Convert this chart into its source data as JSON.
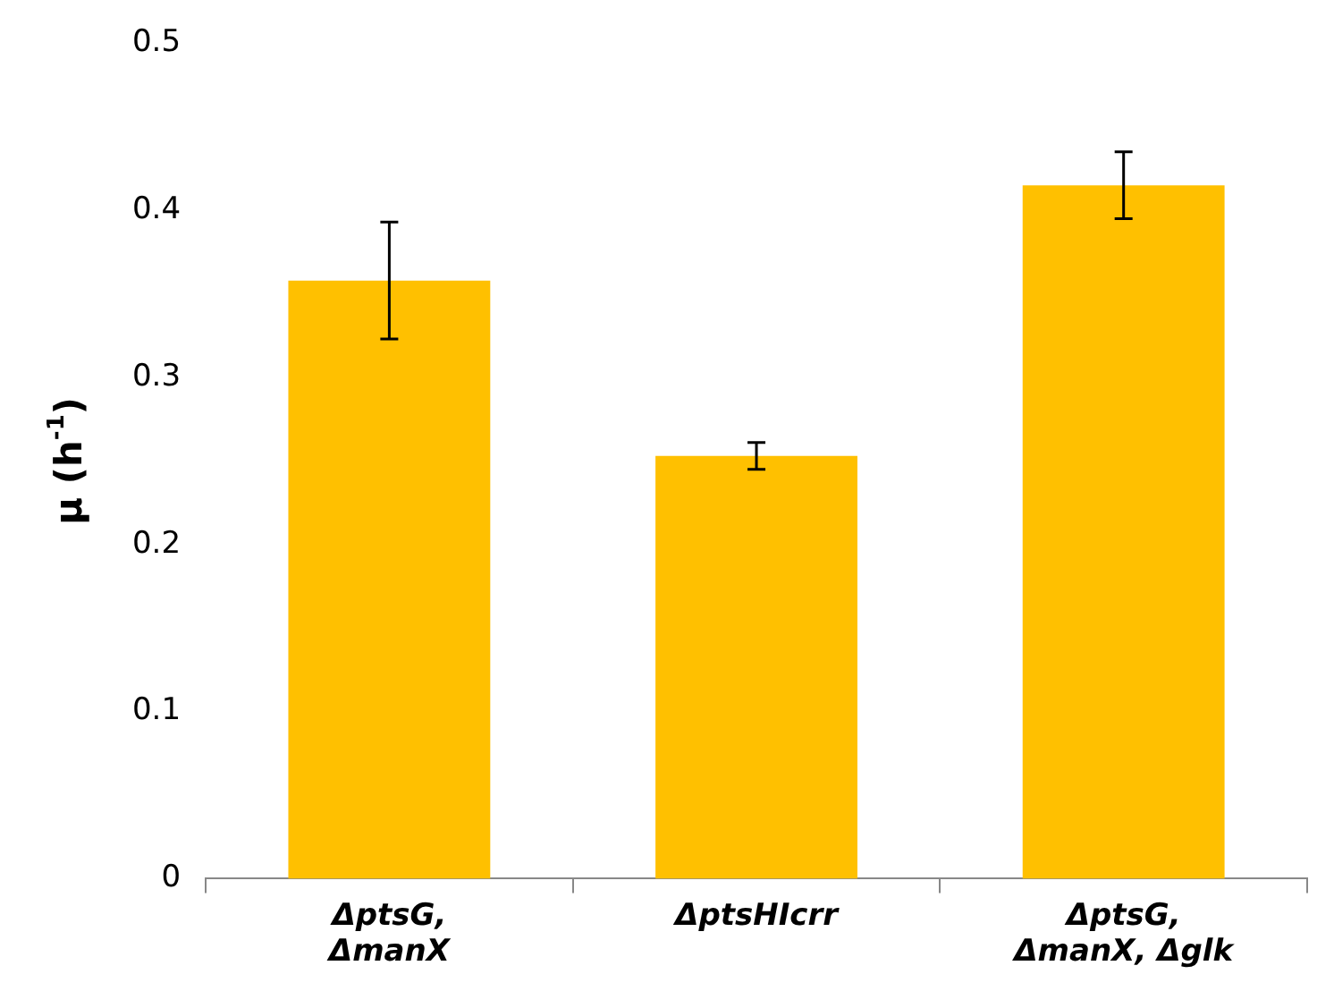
{
  "chart_data": {
    "type": "bar",
    "ylabel": "μ (h$^{-1}$)",
    "categories": [
      "ΔptsG, ΔmanX",
      "ΔptsHIcrr",
      "ΔptsG, ΔmanX, Δglk"
    ],
    "values": [
      0.358,
      0.253,
      0.415
    ],
    "errors": [
      0.035,
      0.008,
      0.02
    ],
    "color": "#ffc000",
    "ylim": [
      0,
      0.5
    ],
    "yticks": [
      0,
      0.1,
      0.2,
      0.3,
      0.4,
      0.5
    ],
    "grid": false,
    "legend": false
  }
}
